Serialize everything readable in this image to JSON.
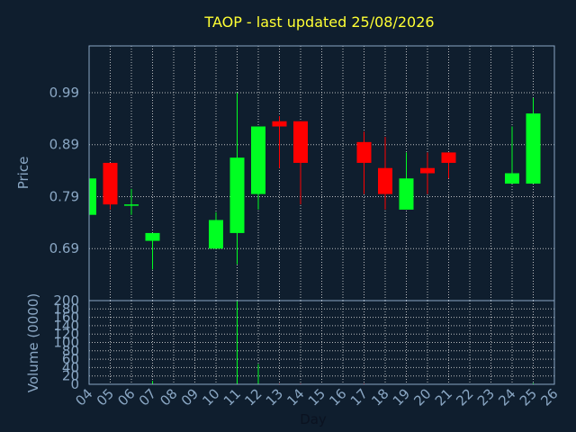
{
  "colors": {
    "background": "#0f1e2e",
    "title": "#ffff33",
    "axis_text": "#8aa7c4",
    "frame": "#8aa7c4",
    "grid": "#d8d8d8",
    "up": "#00ff22",
    "down": "#ff0000"
  },
  "chart_data": {
    "type": "candlestick",
    "title": "TAOP - last updated 25/08/2026",
    "price_panel": {
      "ylabel": "Price",
      "ylim": [
        0.59,
        1.08
      ],
      "yticks": [
        "0.69",
        "0.79",
        "0.89",
        "0.99"
      ],
      "ytick_values": [
        0.69,
        0.79,
        0.89,
        0.99
      ],
      "grid": true
    },
    "volume_panel": {
      "ylabel": "Volume (0000)",
      "ylim": [
        0,
        200
      ],
      "yticks": [
        "0",
        "20",
        "40",
        "60",
        "80",
        "100",
        "120",
        "140",
        "160",
        "180",
        "200"
      ],
      "ytick_values": [
        0,
        20,
        40,
        60,
        80,
        100,
        120,
        140,
        160,
        180,
        200
      ],
      "grid": true
    },
    "xlabel": "Day",
    "x_ticks": [
      "04",
      "05",
      "06",
      "07",
      "08",
      "09",
      "10",
      "11",
      "12",
      "13",
      "14",
      "15",
      "16",
      "17",
      "18",
      "19",
      "20",
      "21",
      "22",
      "23",
      "24",
      "25",
      "26"
    ],
    "candles": [
      {
        "day": "04",
        "open": 0.755,
        "high": 0.825,
        "low": 0.755,
        "close": 0.825
      },
      {
        "day": "05",
        "open": 0.855,
        "high": 0.855,
        "low": 0.765,
        "close": 0.775
      },
      {
        "day": "06",
        "open": 0.775,
        "high": 0.805,
        "low": 0.755,
        "close": 0.775
      },
      {
        "day": "07",
        "open": 0.705,
        "high": 0.72,
        "low": 0.65,
        "close": 0.72
      },
      {
        "day": "10",
        "open": 0.69,
        "high": 0.76,
        "low": 0.69,
        "close": 0.745
      },
      {
        "day": "11",
        "open": 0.72,
        "high": 0.99,
        "low": 0.66,
        "close": 0.865
      },
      {
        "day": "12",
        "open": 0.795,
        "high": 0.925,
        "low": 0.765,
        "close": 0.925
      },
      {
        "day": "13",
        "open": 0.935,
        "high": 0.945,
        "low": 0.845,
        "close": 0.925
      },
      {
        "day": "14",
        "open": 0.935,
        "high": 0.935,
        "low": 0.775,
        "close": 0.855
      },
      {
        "day": "17",
        "open": 0.895,
        "high": 0.915,
        "low": 0.795,
        "close": 0.855
      },
      {
        "day": "18",
        "open": 0.845,
        "high": 0.905,
        "low": 0.765,
        "close": 0.795
      },
      {
        "day": "19",
        "open": 0.765,
        "high": 0.875,
        "low": 0.765,
        "close": 0.825
      },
      {
        "day": "20",
        "open": 0.845,
        "high": 0.875,
        "low": 0.795,
        "close": 0.835
      },
      {
        "day": "21",
        "open": 0.875,
        "high": 0.875,
        "low": 0.825,
        "close": 0.855
      },
      {
        "day": "24",
        "open": 0.815,
        "high": 0.925,
        "low": 0.815,
        "close": 0.835
      },
      {
        "day": "25",
        "open": 0.815,
        "high": 0.98,
        "low": 0.815,
        "close": 0.95
      }
    ],
    "volume": [
      {
        "day": "04",
        "value": 1,
        "color": "up"
      },
      {
        "day": "05",
        "value": 1,
        "color": "down"
      },
      {
        "day": "06",
        "value": 1,
        "color": "up"
      },
      {
        "day": "07",
        "value": 8,
        "color": "up"
      },
      {
        "day": "10",
        "value": 1,
        "color": "up"
      },
      {
        "day": "11",
        "value": 200,
        "color": "up"
      },
      {
        "day": "12",
        "value": 48,
        "color": "up"
      },
      {
        "day": "13",
        "value": 2,
        "color": "down"
      },
      {
        "day": "14",
        "value": 2,
        "color": "down"
      },
      {
        "day": "17",
        "value": 2,
        "color": "down"
      },
      {
        "day": "18",
        "value": 1,
        "color": "down"
      },
      {
        "day": "19",
        "value": 1,
        "color": "up"
      },
      {
        "day": "20",
        "value": 1,
        "color": "down"
      },
      {
        "day": "21",
        "value": 1,
        "color": "down"
      },
      {
        "day": "24",
        "value": 1,
        "color": "up"
      },
      {
        "day": "25",
        "value": 3,
        "color": "up"
      }
    ]
  }
}
